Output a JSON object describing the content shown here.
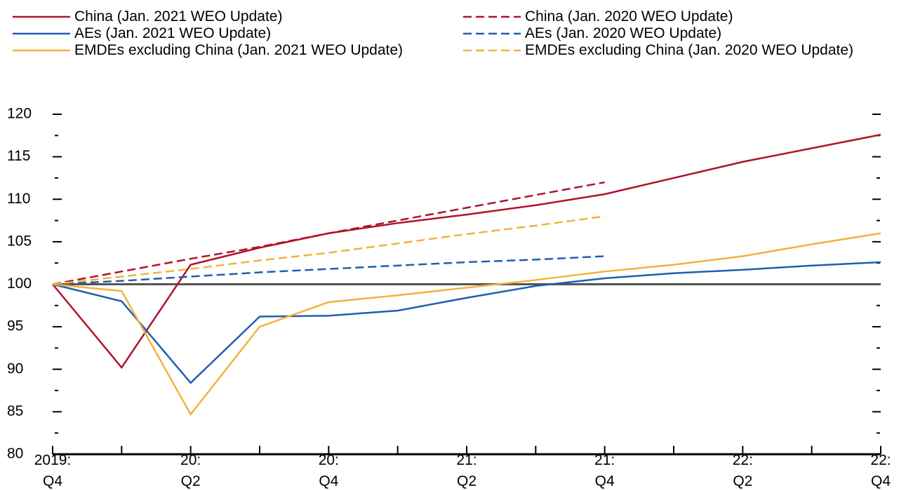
{
  "chart_data": {
    "type": "line",
    "categories": [
      "2019:\nQ4",
      null,
      "20:\nQ2",
      null,
      "20:\nQ4",
      null,
      "21:\nQ2",
      null,
      "21:\nQ4",
      null,
      "22:\nQ2",
      null,
      "22:\nQ4"
    ],
    "series": [
      {
        "name": "China (Jan. 2021 WEO Update)",
        "color": "#b0122c",
        "dash": false,
        "values": [
          100,
          90.2,
          102.3,
          104.3,
          106,
          107.2,
          108.2,
          109.3,
          110.6,
          112.5,
          114.4,
          116,
          117.6
        ]
      },
      {
        "name": "AEs (Jan. 2021 WEO Update)",
        "color": "#1f5fae",
        "dash": false,
        "values": [
          100,
          98,
          88.4,
          96.2,
          96.3,
          96.9,
          98.4,
          99.8,
          100.7,
          101.3,
          101.7,
          102.2,
          102.6
        ]
      },
      {
        "name": "EMDEs excluding China (Jan. 2021 WEO Update)",
        "color": "#f3b23c",
        "dash": false,
        "values": [
          100,
          99.2,
          84.7,
          95,
          97.9,
          98.7,
          99.6,
          100.5,
          101.5,
          102.3,
          103.3,
          104.7,
          106
        ]
      },
      {
        "name": "China (Jan. 2020 WEO Update)",
        "color": "#b0122c",
        "dash": true,
        "values": [
          100,
          101.5,
          103,
          104.4,
          106,
          107.5,
          109,
          110.5,
          112,
          null,
          null,
          null,
          null
        ]
      },
      {
        "name": "AEs (Jan. 2020 WEO Update)",
        "color": "#1f5fae",
        "dash": true,
        "values": [
          100,
          100.4,
          100.9,
          101.4,
          101.8,
          102.2,
          102.6,
          102.9,
          103.3,
          null,
          null,
          null,
          null
        ]
      },
      {
        "name": "EMDEs excluding China (Jan. 2020 WEO Update)",
        "color": "#f3b23c",
        "dash": true,
        "values": [
          100,
          100.9,
          101.8,
          102.8,
          103.7,
          104.8,
          105.9,
          106.9,
          108,
          null,
          null,
          null,
          null
        ]
      }
    ],
    "ylim": [
      80,
      120
    ],
    "yticks": [
      80,
      85,
      90,
      95,
      100,
      105,
      110,
      115,
      120
    ],
    "yticks_minor": [
      82.5,
      87.5,
      92.5,
      97.5,
      102.5,
      107.5,
      112.5,
      117.5
    ],
    "reference_line": 100
  }
}
